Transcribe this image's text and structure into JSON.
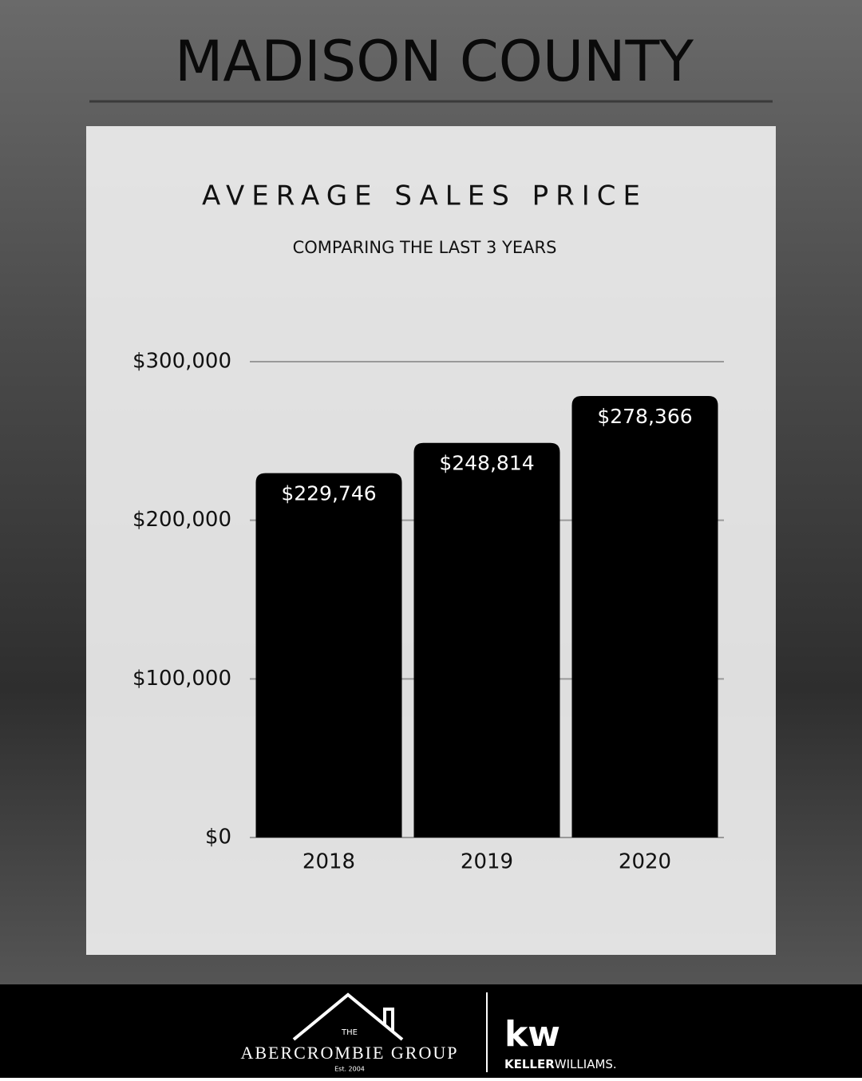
{
  "header": {
    "title": "MADISON COUNTY"
  },
  "chart_data": {
    "type": "bar",
    "title": "AVERAGE SALES PRICE",
    "subtitle": "COMPARING THE LAST 3 YEARS",
    "categories": [
      "2018",
      "2019",
      "2020"
    ],
    "values": [
      229746,
      248814,
      278366
    ],
    "value_labels": [
      "$229,746",
      "$248,814",
      "$278,366"
    ],
    "color": "#000000",
    "ylim": [
      0,
      300000
    ],
    "yticks": [
      {
        "value": 0,
        "label": "$0"
      },
      {
        "value": 100000,
        "label": "$100,000"
      },
      {
        "value": 200000,
        "label": "$200,000"
      },
      {
        "value": 300000,
        "label": "$300,000"
      }
    ],
    "grid": true
  },
  "footer": {
    "group_prefix": "THE",
    "group_name": "ABERCROMBIE GROUP",
    "established": "Est. 2004",
    "kw_logo": "kw",
    "kw_keller": "KELLER",
    "kw_williams": "WILLIAMS."
  }
}
